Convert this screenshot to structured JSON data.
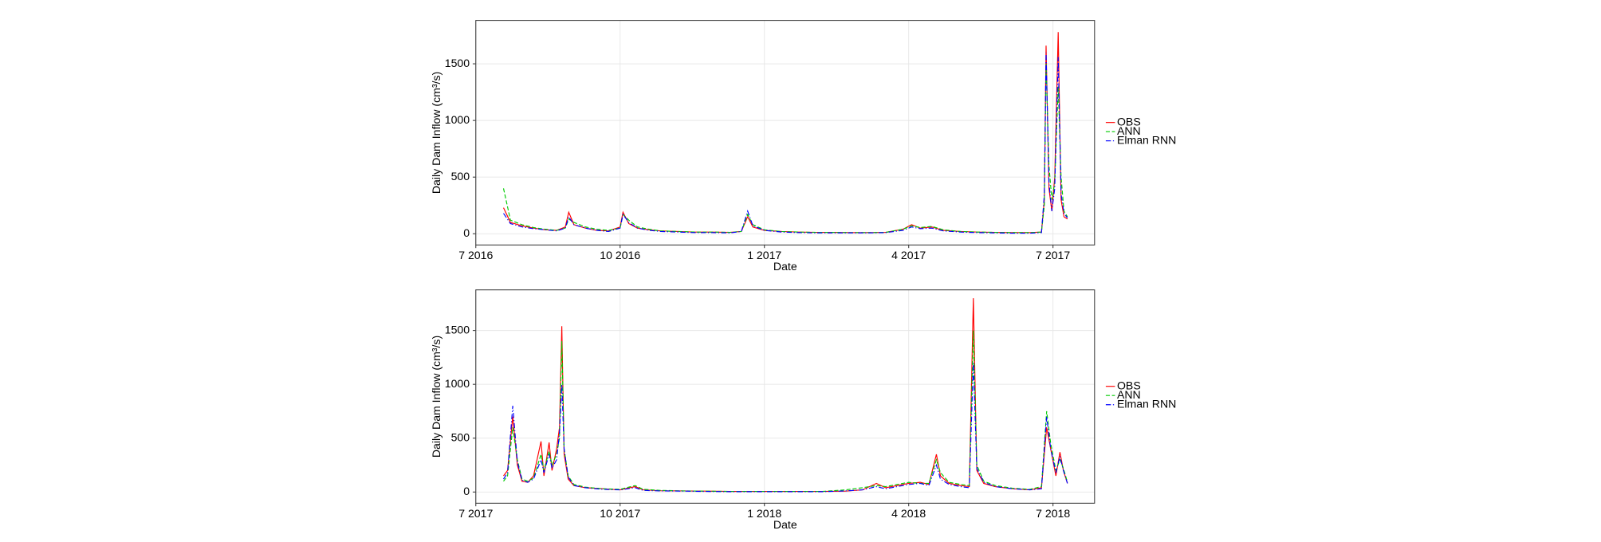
{
  "chart_data": [
    {
      "type": "line",
      "xlabel": "Date",
      "ylabel": "Daily Dam Inflow (cm³/s)",
      "xlim": [
        2016.5,
        2017.572
      ],
      "ylim": [
        -99,
        1883
      ],
      "xticks": [
        {
          "value": 2016.5,
          "label": "7 2016"
        },
        {
          "value": 2016.75,
          "label": "10 2016"
        },
        {
          "value": 2017.0,
          "label": "1 2017"
        },
        {
          "value": 2017.25,
          "label": "4 2017"
        },
        {
          "value": 2017.5,
          "label": "7 2017"
        }
      ],
      "yticks": [
        0,
        500,
        1000,
        1500
      ],
      "grid": true,
      "legend": "right",
      "x": [
        2016.548,
        2016.56,
        2016.58,
        2016.6,
        2016.62,
        2016.64,
        2016.655,
        2016.661,
        2016.67,
        2016.69,
        2016.71,
        2016.73,
        2016.75,
        2016.755,
        2016.765,
        2016.78,
        2016.8,
        2016.82,
        2016.85,
        2016.88,
        2016.91,
        2016.94,
        2016.96,
        2016.971,
        2016.98,
        2017.0,
        2017.03,
        2017.06,
        2017.09,
        2017.12,
        2017.15,
        2017.18,
        2017.21,
        2017.24,
        2017.255,
        2017.27,
        2017.29,
        2017.31,
        2017.34,
        2017.37,
        2017.4,
        2017.43,
        2017.46,
        2017.48,
        2017.485,
        2017.488,
        2017.493,
        2017.498,
        2017.503,
        2017.509,
        2017.514,
        2017.519,
        2017.525
      ],
      "series": [
        {
          "name": "OBS",
          "color": "#ff0000",
          "linestyle": "solid",
          "values": [
            230,
            100,
            70,
            50,
            35,
            30,
            60,
            190,
            80,
            50,
            30,
            25,
            60,
            190,
            90,
            50,
            35,
            25,
            20,
            15,
            15,
            12,
            20,
            150,
            60,
            30,
            20,
            15,
            12,
            12,
            10,
            10,
            12,
            40,
            80,
            50,
            60,
            30,
            20,
            15,
            12,
            10,
            10,
            15,
            300,
            1660,
            400,
            200,
            500,
            1780,
            300,
            150,
            130
          ]
        },
        {
          "name": "ANN",
          "color": "#00cc00",
          "linestyle": "dashed",
          "values": [
            400,
            120,
            80,
            55,
            40,
            30,
            50,
            130,
            100,
            60,
            40,
            30,
            50,
            170,
            120,
            60,
            40,
            25,
            20,
            15,
            15,
            12,
            20,
            170,
            80,
            35,
            20,
            15,
            12,
            12,
            10,
            10,
            12,
            40,
            70,
            55,
            65,
            35,
            20,
            15,
            12,
            10,
            10,
            15,
            250,
            1500,
            600,
            300,
            450,
            1300,
            500,
            200,
            150
          ]
        },
        {
          "name": "Elman RNN",
          "color": "#0000ff",
          "linestyle": "dashdot",
          "values": [
            180,
            90,
            60,
            45,
            35,
            25,
            50,
            150,
            80,
            50,
            30,
            20,
            50,
            170,
            100,
            50,
            30,
            20,
            15,
            10,
            10,
            8,
            20,
            200,
            70,
            30,
            15,
            10,
            8,
            8,
            8,
            8,
            10,
            30,
            60,
            45,
            50,
            25,
            15,
            10,
            8,
            5,
            5,
            10,
            350,
            1600,
            450,
            200,
            400,
            1560,
            350,
            180,
            140
          ]
        }
      ]
    },
    {
      "type": "line",
      "xlabel": "Date",
      "ylabel": "Daily Dam Inflow (cm³/s)",
      "xlim": [
        2017.5,
        2018.572
      ],
      "ylim": [
        -104,
        1877
      ],
      "xticks": [
        {
          "value": 2017.5,
          "label": "7 2017"
        },
        {
          "value": 2017.75,
          "label": "10 2017"
        },
        {
          "value": 2018.0,
          "label": "1 2018"
        },
        {
          "value": 2018.25,
          "label": "4 2018"
        },
        {
          "value": 2018.5,
          "label": "7 2018"
        }
      ],
      "yticks": [
        0,
        500,
        1000,
        1500
      ],
      "grid": true,
      "legend": "right",
      "x": [
        2017.548,
        2017.555,
        2017.564,
        2017.572,
        2017.58,
        2017.59,
        2017.6,
        2017.613,
        2017.618,
        2017.627,
        2017.632,
        2017.64,
        2017.645,
        2017.649,
        2017.653,
        2017.66,
        2017.67,
        2017.69,
        2017.72,
        2017.75,
        2017.776,
        2017.79,
        2017.82,
        2017.86,
        2017.9,
        2017.94,
        2017.98,
        2018.02,
        2018.06,
        2018.1,
        2018.14,
        2018.17,
        2018.194,
        2018.21,
        2018.23,
        2018.25,
        2018.27,
        2018.285,
        2018.298,
        2018.305,
        2018.32,
        2018.34,
        2018.355,
        2018.362,
        2018.368,
        2018.38,
        2018.4,
        2018.43,
        2018.46,
        2018.48,
        2018.489,
        2018.496,
        2018.505,
        2018.512,
        2018.518,
        2018.525
      ],
      "series": [
        {
          "name": "OBS",
          "color": "#ff0000",
          "linestyle": "solid",
          "values": [
            150,
            200,
            700,
            250,
            100,
            90,
            150,
            470,
            150,
            460,
            200,
            400,
            600,
            1540,
            350,
            120,
            60,
            40,
            30,
            20,
            50,
            20,
            12,
            10,
            8,
            5,
            5,
            5,
            5,
            5,
            8,
            20,
            80,
            40,
            60,
            80,
            90,
            70,
            350,
            150,
            80,
            60,
            50,
            1800,
            200,
            80,
            50,
            30,
            20,
            40,
            600,
            400,
            150,
            370,
            200,
            80
          ]
        },
        {
          "name": "ANN",
          "color": "#00cc00",
          "linestyle": "dashed",
          "values": [
            100,
            150,
            600,
            300,
            120,
            100,
            130,
            350,
            200,
            380,
            250,
            350,
            500,
            1400,
            400,
            150,
            70,
            45,
            30,
            25,
            60,
            25,
            15,
            10,
            8,
            5,
            5,
            5,
            5,
            5,
            20,
            40,
            60,
            50,
            70,
            90,
            80,
            80,
            300,
            180,
            90,
            70,
            60,
            1500,
            250,
            100,
            60,
            35,
            25,
            50,
            750,
            450,
            200,
            300,
            220,
            90
          ]
        },
        {
          "name": "Elman RNN",
          "color": "#0000ff",
          "linestyle": "dashdot",
          "values": [
            120,
            180,
            800,
            280,
            110,
            90,
            120,
            300,
            180,
            350,
            220,
            300,
            550,
            1000,
            400,
            140,
            60,
            40,
            25,
            20,
            40,
            15,
            10,
            8,
            5,
            3,
            3,
            3,
            3,
            3,
            10,
            20,
            50,
            30,
            50,
            70,
            80,
            60,
            250,
            120,
            70,
            50,
            40,
            1200,
            220,
            90,
            50,
            30,
            20,
            30,
            700,
            400,
            180,
            330,
            200,
            80
          ]
        }
      ]
    }
  ]
}
